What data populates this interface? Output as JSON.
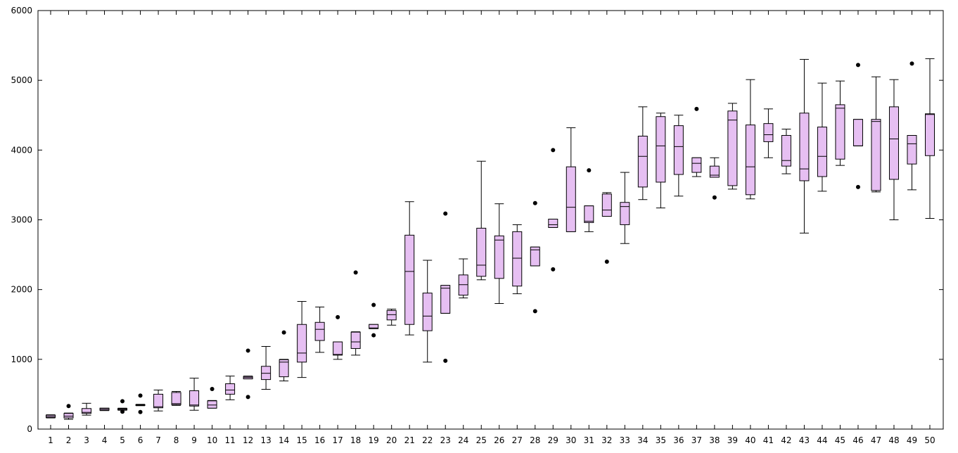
{
  "chart_data": {
    "type": "box",
    "title": "",
    "xlabel": "",
    "ylabel": "",
    "ylim": [
      0,
      6000
    ],
    "yticks": [
      0,
      1000,
      2000,
      3000,
      4000,
      5000,
      6000
    ],
    "grid": false,
    "colors": {
      "box_fill": "#e6bff2",
      "line": "#000000"
    },
    "categories": [
      "1",
      "2",
      "3",
      "4",
      "5",
      "6",
      "7",
      "8",
      "9",
      "10",
      "11",
      "12",
      "13",
      "14",
      "15",
      "16",
      "17",
      "18",
      "19",
      "20",
      "21",
      "22",
      "23",
      "24",
      "25",
      "26",
      "27",
      "28",
      "29",
      "30",
      "31",
      "32",
      "33",
      "34",
      "35",
      "36",
      "37",
      "38",
      "39",
      "40",
      "41",
      "42",
      "43",
      "44",
      "45",
      "46",
      "47",
      "48",
      "49",
      "50"
    ],
    "boxes": [
      {
        "whisker_low": 160,
        "q1": 165,
        "median": 180,
        "q3": 200,
        "whisker_high": 205,
        "outliers": []
      },
      {
        "whisker_low": 140,
        "q1": 160,
        "median": 185,
        "q3": 225,
        "whisker_high": 230,
        "outliers": [
          330
        ]
      },
      {
        "whisker_low": 200,
        "q1": 225,
        "median": 240,
        "q3": 295,
        "whisker_high": 370,
        "outliers": []
      },
      {
        "whisker_low": 265,
        "q1": 270,
        "median": 285,
        "q3": 300,
        "whisker_high": 300,
        "outliers": []
      },
      {
        "whisker_low": 270,
        "q1": 275,
        "median": 285,
        "q3": 295,
        "whisker_high": 300,
        "outliers": [
          400,
          250
        ]
      },
      {
        "whisker_low": 335,
        "q1": 340,
        "median": 345,
        "q3": 350,
        "whisker_high": 355,
        "outliers": [
          480,
          245
        ]
      },
      {
        "whisker_low": 260,
        "q1": 305,
        "median": 320,
        "q3": 500,
        "whisker_high": 560,
        "outliers": []
      },
      {
        "whisker_low": 340,
        "q1": 350,
        "median": 365,
        "q3": 525,
        "whisker_high": 540,
        "outliers": []
      },
      {
        "whisker_low": 270,
        "q1": 330,
        "median": 345,
        "q3": 550,
        "whisker_high": 730,
        "outliers": []
      },
      {
        "whisker_low": 300,
        "q1": 300,
        "median": 345,
        "q3": 405,
        "whisker_high": 410,
        "outliers": [
          575
        ]
      },
      {
        "whisker_low": 420,
        "q1": 500,
        "median": 560,
        "q3": 650,
        "whisker_high": 760,
        "outliers": []
      },
      {
        "whisker_low": 720,
        "q1": 720,
        "median": 740,
        "q3": 755,
        "whisker_high": 760,
        "outliers": [
          1125,
          460
        ]
      },
      {
        "whisker_low": 570,
        "q1": 710,
        "median": 800,
        "q3": 900,
        "whisker_high": 1185,
        "outliers": []
      },
      {
        "whisker_low": 690,
        "q1": 750,
        "median": 960,
        "q3": 995,
        "whisker_high": 1000,
        "outliers": [
          1385
        ]
      },
      {
        "whisker_low": 740,
        "q1": 960,
        "median": 1090,
        "q3": 1500,
        "whisker_high": 1830,
        "outliers": []
      },
      {
        "whisker_low": 1100,
        "q1": 1270,
        "median": 1430,
        "q3": 1530,
        "whisker_high": 1750,
        "outliers": []
      },
      {
        "whisker_low": 1000,
        "q1": 1060,
        "median": 1070,
        "q3": 1250,
        "whisker_high": 1250,
        "outliers": [
          1605
        ]
      },
      {
        "whisker_low": 1060,
        "q1": 1155,
        "median": 1250,
        "q3": 1390,
        "whisker_high": 1395,
        "outliers": [
          2245
        ]
      },
      {
        "whisker_low": 1440,
        "q1": 1440,
        "median": 1450,
        "q3": 1500,
        "whisker_high": 1500,
        "outliers": [
          1780,
          1345
        ]
      },
      {
        "whisker_low": 1490,
        "q1": 1565,
        "median": 1640,
        "q3": 1700,
        "whisker_high": 1720,
        "outliers": []
      },
      {
        "whisker_low": 1350,
        "q1": 1500,
        "median": 2260,
        "q3": 2780,
        "whisker_high": 3260,
        "outliers": []
      },
      {
        "whisker_low": 960,
        "q1": 1410,
        "median": 1620,
        "q3": 1950,
        "whisker_high": 2420,
        "outliers": []
      },
      {
        "whisker_low": 1660,
        "q1": 1660,
        "median": 2020,
        "q3": 2060,
        "whisker_high": 2060,
        "outliers": [
          3090,
          980
        ]
      },
      {
        "whisker_low": 1880,
        "q1": 1920,
        "median": 2070,
        "q3": 2210,
        "whisker_high": 2440,
        "outliers": []
      },
      {
        "whisker_low": 2140,
        "q1": 2190,
        "median": 2350,
        "q3": 2880,
        "whisker_high": 3840,
        "outliers": []
      },
      {
        "whisker_low": 1800,
        "q1": 2160,
        "median": 2710,
        "q3": 2770,
        "whisker_high": 3230,
        "outliers": []
      },
      {
        "whisker_low": 1940,
        "q1": 2050,
        "median": 2450,
        "q3": 2830,
        "whisker_high": 2930,
        "outliers": []
      },
      {
        "whisker_low": 2340,
        "q1": 2340,
        "median": 2570,
        "q3": 2610,
        "whisker_high": 2610,
        "outliers": [
          3240,
          1690
        ]
      },
      {
        "whisker_low": 2890,
        "q1": 2890,
        "median": 2930,
        "q3": 3010,
        "whisker_high": 3010,
        "outliers": [
          4000,
          2290
        ]
      },
      {
        "whisker_low": 2830,
        "q1": 2830,
        "median": 3180,
        "q3": 3760,
        "whisker_high": 4320,
        "outliers": []
      },
      {
        "whisker_low": 2830,
        "q1": 2960,
        "median": 2980,
        "q3": 3200,
        "whisker_high": 3200,
        "outliers": [
          3710
        ]
      },
      {
        "whisker_low": 3050,
        "q1": 3050,
        "median": 3140,
        "q3": 3370,
        "whisker_high": 3390,
        "outliers": [
          2400
        ]
      },
      {
        "whisker_low": 2660,
        "q1": 2930,
        "median": 3190,
        "q3": 3250,
        "whisker_high": 3680,
        "outliers": []
      },
      {
        "whisker_low": 3290,
        "q1": 3470,
        "median": 3910,
        "q3": 4200,
        "whisker_high": 4620,
        "outliers": []
      },
      {
        "whisker_low": 3170,
        "q1": 3540,
        "median": 4060,
        "q3": 4480,
        "whisker_high": 4530,
        "outliers": []
      },
      {
        "whisker_low": 3340,
        "q1": 3650,
        "median": 4050,
        "q3": 4350,
        "whisker_high": 4500,
        "outliers": []
      },
      {
        "whisker_low": 3620,
        "q1": 3680,
        "median": 3810,
        "q3": 3890,
        "whisker_high": 3890,
        "outliers": [
          4590
        ]
      },
      {
        "whisker_low": 3610,
        "q1": 3610,
        "median": 3640,
        "q3": 3770,
        "whisker_high": 3890,
        "outliers": [
          3320
        ]
      },
      {
        "whisker_low": 3440,
        "q1": 3490,
        "median": 4430,
        "q3": 4560,
        "whisker_high": 4670,
        "outliers": []
      },
      {
        "whisker_low": 3300,
        "q1": 3360,
        "median": 3760,
        "q3": 4360,
        "whisker_high": 5010,
        "outliers": []
      },
      {
        "whisker_low": 3890,
        "q1": 4120,
        "median": 4220,
        "q3": 4380,
        "whisker_high": 4590,
        "outliers": []
      },
      {
        "whisker_low": 3660,
        "q1": 3770,
        "median": 3850,
        "q3": 4210,
        "whisker_high": 4300,
        "outliers": []
      },
      {
        "whisker_low": 2810,
        "q1": 3560,
        "median": 3730,
        "q3": 4530,
        "whisker_high": 5300,
        "outliers": []
      },
      {
        "whisker_low": 3410,
        "q1": 3620,
        "median": 3910,
        "q3": 4330,
        "whisker_high": 4960,
        "outliers": []
      },
      {
        "whisker_low": 3780,
        "q1": 3870,
        "median": 4600,
        "q3": 4650,
        "whisker_high": 4990,
        "outliers": []
      },
      {
        "whisker_low": 4060,
        "q1": 4060,
        "median": 4060,
        "q3": 4440,
        "whisker_high": 4440,
        "outliers": [
          5220,
          3470
        ]
      },
      {
        "whisker_low": 3400,
        "q1": 3420,
        "median": 4410,
        "q3": 4440,
        "whisker_high": 5050,
        "outliers": []
      },
      {
        "whisker_low": 3000,
        "q1": 3580,
        "median": 4160,
        "q3": 4620,
        "whisker_high": 5010,
        "outliers": []
      },
      {
        "whisker_low": 3430,
        "q1": 3800,
        "median": 4090,
        "q3": 4210,
        "whisker_high": 4210,
        "outliers": [
          5240
        ]
      },
      {
        "whisker_low": 3020,
        "q1": 3920,
        "median": 4510,
        "q3": 4520,
        "whisker_high": 5310,
        "outliers": []
      }
    ]
  }
}
